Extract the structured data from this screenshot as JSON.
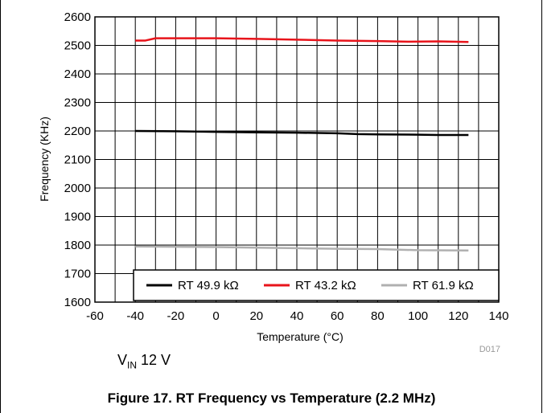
{
  "figure": {
    "caption": "Figure 17. RT Frequency vs Temperature (2.2 MHz)",
    "condition_main": "V",
    "condition_sub": "IN",
    "condition_rest": " 12 V",
    "code": "D017"
  },
  "chart_data": {
    "type": "line",
    "title": "",
    "xlabel": "Temperature (°C)",
    "ylabel": "Frequency (KHz)",
    "xlim": [
      -60,
      140
    ],
    "ylim": [
      1600,
      2600
    ],
    "xticks": [
      -60,
      -40,
      -20,
      0,
      20,
      40,
      60,
      80,
      100,
      120,
      140
    ],
    "yticks": [
      1600,
      1700,
      1800,
      1900,
      2000,
      2100,
      2200,
      2300,
      2400,
      2500,
      2600
    ],
    "grid": true,
    "legend_position": "bottom-right",
    "series": [
      {
        "name": "RT 49.9 kΩ",
        "color": "#000000",
        "x": [
          -40,
          -20,
          0,
          20,
          40,
          60,
          70,
          80,
          100,
          110,
          125
        ],
        "y": [
          2200,
          2199,
          2197,
          2195,
          2194,
          2192,
          2189,
          2188,
          2187,
          2186,
          2186
        ]
      },
      {
        "name": "RT 43.2 kΩ",
        "color": "#e8141b",
        "x": [
          -40,
          -35,
          -30,
          -20,
          0,
          20,
          40,
          60,
          80,
          95,
          110,
          125
        ],
        "y": [
          2517,
          2517,
          2525,
          2525,
          2525,
          2523,
          2520,
          2517,
          2515,
          2513,
          2514,
          2512
        ]
      },
      {
        "name": "RT 61.9 kΩ",
        "color": "#b0b0b0",
        "x": [
          -40,
          -20,
          0,
          20,
          40,
          60,
          80,
          100,
          125
        ],
        "y": [
          1795,
          1794,
          1793,
          1791,
          1789,
          1787,
          1786,
          1782,
          1781
        ]
      }
    ]
  }
}
